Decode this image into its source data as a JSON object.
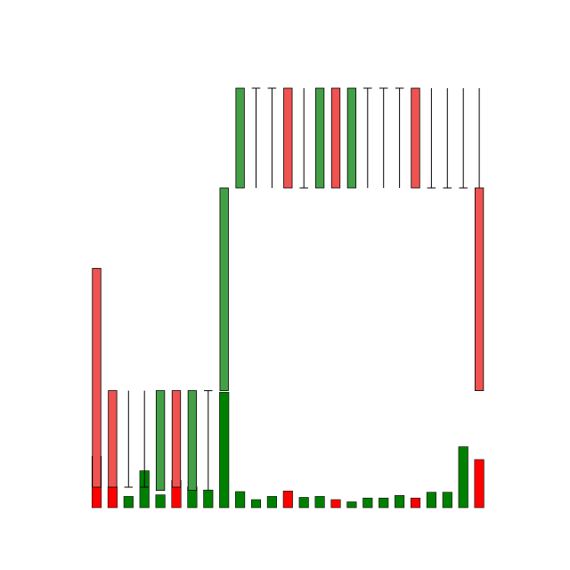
{
  "chart_data": {
    "type": "candlestick",
    "title": "",
    "xlabel": "",
    "ylabel": "",
    "grid": false,
    "axes_visible": false,
    "ylim": [
      0,
      10
    ],
    "volume_ylim": [
      0,
      10
    ],
    "colors": {
      "up_body": "#43a047",
      "down_body": "#ef5350",
      "up_volume": "#008000",
      "down_volume": "#ff0000",
      "wick": "#000000"
    },
    "candles": [
      {
        "open": 7.8,
        "high": 7.8,
        "low": 1.0,
        "close": 1.0,
        "volume": 1.6
      },
      {
        "open": 4.0,
        "high": 4.0,
        "low": 1.0,
        "close": 1.0,
        "volume": 0.65
      },
      {
        "open": 1.0,
        "high": 4.0,
        "low": 1.0,
        "close": 1.0,
        "volume": 0.35
      },
      {
        "open": 1.0,
        "high": 4.0,
        "low": 1.0,
        "close": 1.0,
        "volume": 1.15
      },
      {
        "open": 0.9,
        "high": 4.0,
        "low": 0.9,
        "close": 4.0,
        "volume": 0.4
      },
      {
        "open": 4.0,
        "high": 4.0,
        "low": 1.0,
        "close": 1.0,
        "volume": 0.85
      },
      {
        "open": 0.9,
        "high": 4.0,
        "low": 0.9,
        "close": 4.0,
        "volume": 0.65
      },
      {
        "open": 4.0,
        "high": 4.0,
        "low": 0.9,
        "close": 4.0,
        "volume": 0.55
      },
      {
        "open": 4.0,
        "high": 10.3,
        "low": 4.0,
        "close": 10.3,
        "volume": 3.6
      },
      {
        "open": 10.3,
        "high": 13.4,
        "low": 10.3,
        "close": 13.4,
        "volume": 0.5
      },
      {
        "open": 13.4,
        "high": 13.4,
        "low": 10.3,
        "close": 13.4,
        "volume": 0.25
      },
      {
        "open": 13.4,
        "high": 13.4,
        "low": 10.3,
        "close": 13.4,
        "volume": 0.35
      },
      {
        "open": 13.4,
        "high": 13.4,
        "low": 10.3,
        "close": 10.3,
        "volume": 0.52
      },
      {
        "open": 10.3,
        "high": 13.4,
        "low": 10.3,
        "close": 10.3,
        "volume": 0.32
      },
      {
        "open": 10.3,
        "high": 13.4,
        "low": 10.3,
        "close": 13.4,
        "volume": 0.35
      },
      {
        "open": 13.4,
        "high": 13.4,
        "low": 10.3,
        "close": 10.3,
        "volume": 0.25
      },
      {
        "open": 10.3,
        "high": 13.4,
        "low": 10.3,
        "close": 13.4,
        "volume": 0.18
      },
      {
        "open": 13.4,
        "high": 13.4,
        "low": 10.3,
        "close": 13.4,
        "volume": 0.3
      },
      {
        "open": 13.4,
        "high": 13.4,
        "low": 10.3,
        "close": 13.4,
        "volume": 0.3
      },
      {
        "open": 13.4,
        "high": 13.4,
        "low": 10.3,
        "close": 13.4,
        "volume": 0.38
      },
      {
        "open": 13.4,
        "high": 13.4,
        "low": 10.3,
        "close": 10.3,
        "volume": 0.3
      },
      {
        "open": 10.3,
        "high": 13.4,
        "low": 10.3,
        "close": 10.3,
        "volume": 0.48
      },
      {
        "open": 10.3,
        "high": 13.4,
        "low": 10.3,
        "close": 10.3,
        "volume": 0.48
      },
      {
        "open": 10.3,
        "high": 13.4,
        "low": 10.3,
        "close": 10.3,
        "volume": 1.9
      },
      {
        "open": 10.3,
        "high": 13.4,
        "low": 4.0,
        "close": 4.0,
        "volume": 1.5
      }
    ]
  }
}
